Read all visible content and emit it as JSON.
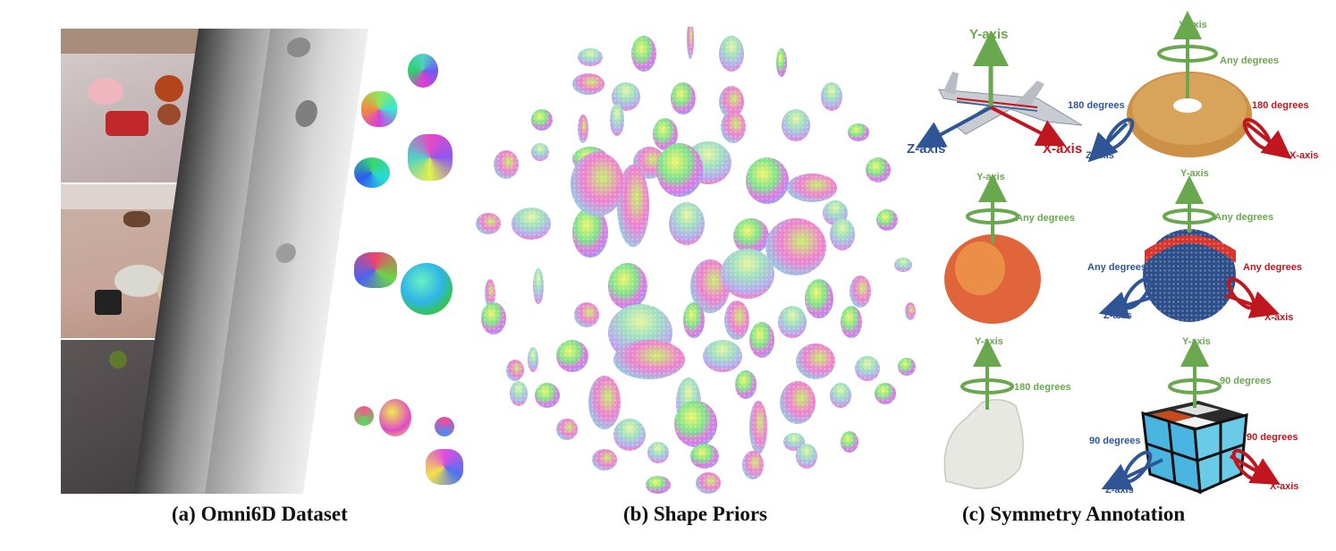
{
  "captions": {
    "a": "(a) Omni6D Dataset",
    "b": "(b) Shape Priors",
    "c": "(c) Symmetry Annotation"
  },
  "airplane": {
    "y": "Y-axis",
    "x": "X-axis",
    "z": "Z-axis"
  },
  "donut": {
    "y": "Y-axis",
    "y_deg": "Any degrees",
    "z_deg": "180 degrees",
    "x_deg": "180 degrees",
    "z": "Z-axis",
    "x": "X-axis"
  },
  "apple": {
    "y": "Y-axis",
    "y_deg": "Any degrees"
  },
  "ball": {
    "y": "Y-axis",
    "y_deg": "Any degrees",
    "z_deg": "Any degrees",
    "x_deg": "Any degrees",
    "z": "Z-axis",
    "x": "X-axis"
  },
  "bag": {
    "y": "Y-axis",
    "y_deg": "180 degrees"
  },
  "cube": {
    "y": "Y-axis",
    "y_deg": "90 degrees",
    "z_deg": "90 degrees",
    "x_deg": "90 degrees",
    "z": "Z-axis",
    "x": "X-axis"
  },
  "colors": {
    "y_axis": "#6aa84f",
    "z_axis": "#2f5597",
    "x_axis": "#c0161f"
  }
}
